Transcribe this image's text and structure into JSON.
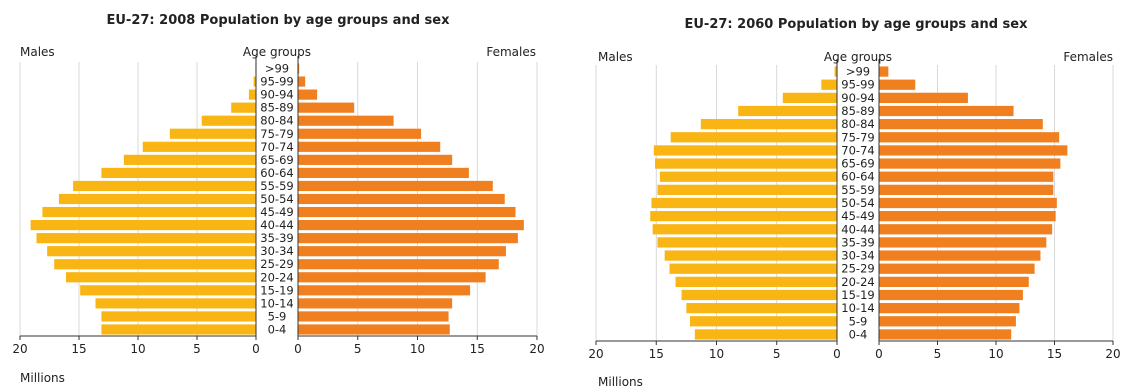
{
  "chart_data": [
    {
      "type": "bar",
      "title": "EU-27: 2008 Population by age groups and sex",
      "left_label": "Males",
      "center_label": "Age groups",
      "right_label": "Females",
      "unit_label": "Millions",
      "xlim": [
        0,
        20
      ],
      "ticks": [
        20,
        15,
        10,
        5,
        0
      ],
      "categories": [
        ">99",
        "95-99",
        "90-94",
        "85-89",
        "80-84",
        "75-79",
        "70-74",
        "65-69",
        "60-64",
        "55-59",
        "50-54",
        "45-49",
        "40-44",
        "35-39",
        "30-34",
        "25-29",
        "20-24",
        "15-19",
        "10-14",
        "5-9",
        "0-4"
      ],
      "series": [
        {
          "name": "Males",
          "values": [
            0.05,
            0.2,
            0.6,
            2.1,
            4.6,
            7.3,
            9.6,
            11.2,
            13.1,
            15.5,
            16.7,
            18.1,
            19.1,
            18.6,
            17.7,
            17.1,
            16.1,
            14.9,
            13.6,
            13.1,
            13.1
          ]
        },
        {
          "name": "Females",
          "values": [
            0.1,
            0.6,
            1.6,
            4.7,
            8.0,
            10.3,
            11.9,
            12.9,
            14.3,
            16.3,
            17.3,
            18.2,
            18.9,
            18.4,
            17.4,
            16.8,
            15.7,
            14.4,
            12.9,
            12.6,
            12.7
          ]
        }
      ]
    },
    {
      "type": "bar",
      "title": "EU-27: 2060 Population by age groups and sex",
      "left_label": "Males",
      "center_label": "Age groups",
      "right_label": "Females",
      "unit_label": "Millions",
      "xlim": [
        0,
        20
      ],
      "ticks": [
        20,
        15,
        10,
        5,
        0
      ],
      "categories": [
        ">99",
        "95-99",
        "90-94",
        "85-89",
        "80-84",
        "75-79",
        "70-74",
        "65-69",
        "60-64",
        "55-59",
        "50-54",
        "45-49",
        "40-44",
        "35-39",
        "30-34",
        "25-29",
        "20-24",
        "15-19",
        "10-14",
        "5-9",
        "0-4"
      ],
      "series": [
        {
          "name": "Males",
          "values": [
            0.2,
            1.3,
            4.5,
            8.2,
            11.3,
            13.8,
            15.2,
            15.1,
            14.7,
            14.9,
            15.4,
            15.5,
            15.3,
            14.9,
            14.3,
            13.9,
            13.4,
            12.9,
            12.5,
            12.2,
            11.8
          ]
        },
        {
          "name": "Females",
          "values": [
            0.8,
            3.1,
            7.6,
            11.5,
            14.0,
            15.4,
            16.1,
            15.5,
            14.9,
            14.9,
            15.2,
            15.1,
            14.8,
            14.3,
            13.8,
            13.3,
            12.8,
            12.3,
            12.0,
            11.7,
            11.3
          ]
        }
      ]
    }
  ]
}
